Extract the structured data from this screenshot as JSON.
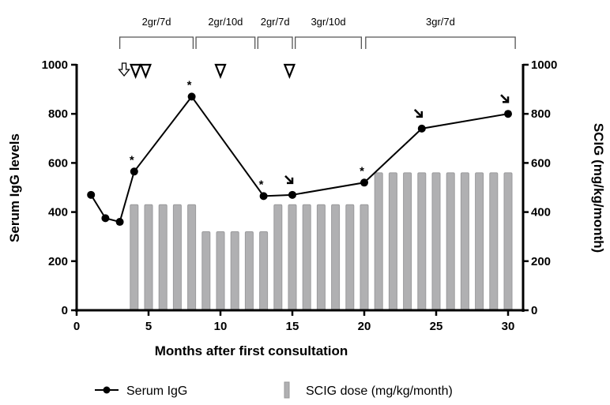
{
  "chart_data": {
    "type": "bar+line",
    "xlabel": "Months after first consultation",
    "ylabel_left": "Serum IgG levels",
    "ylabel_right": "SCIG (mg/kg/month)",
    "xlim": [
      0,
      31
    ],
    "xticks": [
      0,
      5,
      10,
      15,
      20,
      25,
      30
    ],
    "ylim_left": [
      0,
      1000
    ],
    "ylim_right": [
      0,
      1000
    ],
    "yticks": [
      0,
      200,
      400,
      600,
      800,
      1000
    ],
    "grid": false,
    "legend_position": "bottom",
    "series": [
      {
        "name": "Serum IgG",
        "type": "line",
        "axis": "left",
        "color": "#000000",
        "x": [
          1,
          2,
          3,
          4,
          8,
          13,
          15,
          20,
          24,
          30
        ],
        "y": [
          470,
          375,
          360,
          565,
          870,
          465,
          470,
          520,
          740,
          800
        ]
      },
      {
        "name": "SCIG dose (mg/kg/month)",
        "type": "bar",
        "axis": "right",
        "color": "#b0b0b2",
        "x": [
          4,
          5,
          6,
          7,
          8,
          9,
          10,
          11,
          12,
          13,
          14,
          15,
          16,
          17,
          18,
          19,
          20,
          21,
          22,
          23,
          24,
          25,
          26,
          27,
          28,
          29,
          30
        ],
        "y": [
          430,
          430,
          430,
          430,
          430,
          320,
          320,
          320,
          320,
          320,
          430,
          430,
          430,
          430,
          430,
          430,
          430,
          560,
          560,
          560,
          560,
          560,
          560,
          560,
          560,
          560,
          560
        ]
      }
    ],
    "regimens": [
      {
        "label": "2gr/7d",
        "from": 3.0,
        "to": 8.1
      },
      {
        "label": "2gr/10d",
        "from": 8.3,
        "to": 12.4
      },
      {
        "label": "2gr/7d",
        "from": 12.6,
        "to": 15.0
      },
      {
        "label": "3gr/10d",
        "from": 15.2,
        "to": 19.8
      },
      {
        "label": "3gr/7d",
        "from": 20.1,
        "to": 30.5
      }
    ],
    "annotations": {
      "asterisk_at": [
        4,
        8,
        13,
        20
      ],
      "asterisk_symbol": "*",
      "small_arrow_at": [
        15,
        24,
        30
      ],
      "open_down_arrow_at": [
        3.3
      ],
      "open_triangle_at": [
        4.1,
        4.8,
        10.0,
        14.8
      ]
    }
  }
}
